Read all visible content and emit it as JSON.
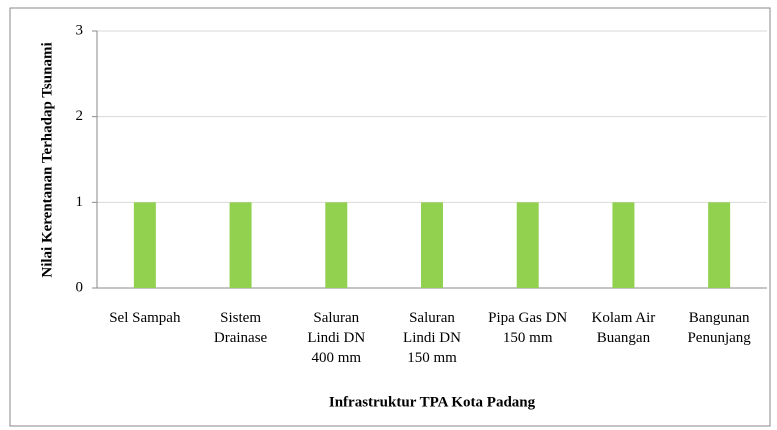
{
  "chart_data": {
    "type": "bar",
    "categories": [
      "Sel Sampah",
      "Sistem Drainase",
      "Saluran Lindi DN 400 mm",
      "Saluran Lindi DN 150 mm",
      "Pipa Gas DN 150 mm",
      "Kolam Air Buangan",
      "Bangunan Penunjang"
    ],
    "values": [
      1,
      1,
      1,
      1,
      1,
      1,
      1
    ],
    "color": "#92d050",
    "ylim": [
      0,
      3
    ],
    "yticks": [
      0,
      1,
      2,
      3
    ],
    "grid": true,
    "x_label": "Infrastruktur TPA Kota Padang",
    "y_label": "Nilai Kerentanan Terhadap Tsunami"
  }
}
